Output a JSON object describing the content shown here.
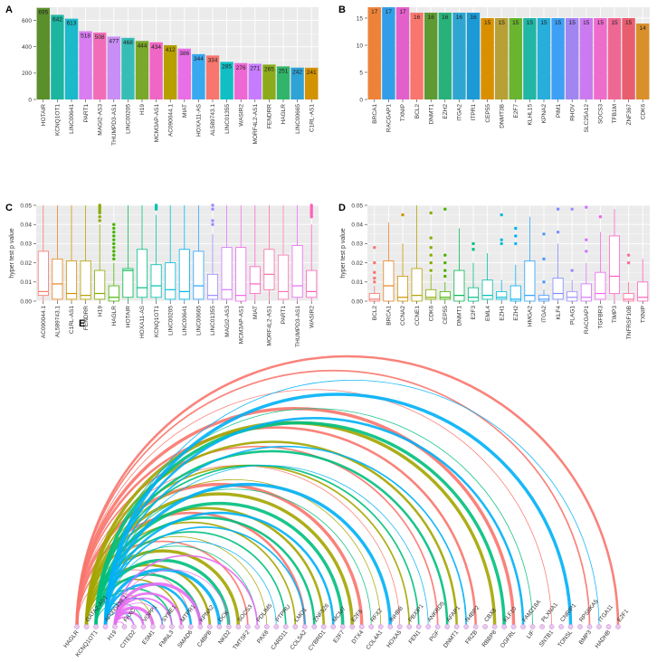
{
  "chart_data": [
    {
      "panel": "A",
      "type": "bar",
      "categories": [
        "HOTAIR",
        "KCNQ1OT1",
        "LINC00641",
        "PART1",
        "MAGI2-AS3",
        "THUMPD3-AS1",
        "LINC00205",
        "H19",
        "MCM3AP-AS1",
        "AC090044.1",
        "MIAT",
        "HOXA11-AS",
        "AL589743.1",
        "LINC01355",
        "WASIR2",
        "MORF4L2-AS1",
        "FENDRR",
        "HAGLR",
        "LINC00665",
        "C1RL-AS1"
      ],
      "values": [
        695,
        642,
        613,
        518,
        508,
        477,
        468,
        444,
        434,
        412,
        386,
        344,
        334,
        285,
        276,
        271,
        265,
        251,
        242,
        241
      ],
      "colors": [
        "#5a8f2c",
        "#1cb59f",
        "#1bb9c9",
        "#d97df2",
        "#f26db8",
        "#c98ef5",
        "#36bdb6",
        "#7aa82a",
        "#f066c4",
        "#b79f00",
        "#e86fe6",
        "#38a8f0",
        "#f8766d",
        "#0fbfc4",
        "#ee68d4",
        "#c77cff",
        "#8bab1c",
        "#31b56a",
        "#2fa2d6",
        "#d39200"
      ],
      "ylim": [
        0,
        700
      ],
      "yticks": [
        0,
        200,
        400,
        600
      ]
    },
    {
      "panel": "B",
      "type": "bar",
      "categories": [
        "BRCA1",
        "RACGAP1",
        "TXNIP",
        "BCL2",
        "DNMT1",
        "EZH2",
        "ITGA2",
        "ITPR1",
        "CEP55",
        "DNMT3B",
        "E2F7",
        "KLHL15",
        "KPNA2",
        "PIM1",
        "RHOV",
        "SLC25A12",
        "SOCS3",
        "TFB1M",
        "ZNF367",
        "CDK6"
      ],
      "values": [
        17,
        17,
        17,
        16,
        16,
        16,
        16,
        16,
        15,
        15,
        15,
        15,
        15,
        15,
        15,
        15,
        15,
        15,
        15,
        14
      ],
      "colors": [
        "#ed8338",
        "#339ee8",
        "#e35fc9",
        "#f8766d",
        "#5e9a34",
        "#28b27a",
        "#2ea6d1",
        "#1b9ad6",
        "#d89000",
        "#b7a035",
        "#6ab42f",
        "#22b6a4",
        "#27aeda",
        "#3da0f5",
        "#a186f0",
        "#cc7af0",
        "#ee6ccc",
        "#ef6893",
        "#e85e6f",
        "#d9902b"
      ],
      "ylim": [
        0,
        17
      ],
      "yticks": [
        0,
        5,
        10,
        15
      ]
    },
    {
      "panel": "C",
      "type": "box",
      "ylabel": "hyper test p value",
      "ylim": [
        0,
        0.05
      ],
      "yticks": [
        "0.00",
        "0.01",
        "0.02",
        "0.03",
        "0.04",
        "0.05"
      ],
      "categories": [
        "AC090044.1",
        "AL589743.1",
        "C1RL-AS1",
        "FENDRR",
        "H19",
        "HAGLR",
        "HOTAIR",
        "HOXA11-AS",
        "KCNQ1OT1",
        "LINC00205",
        "LINC00641",
        "LINC00665",
        "LINC01355",
        "MAGI2-AS3",
        "MCM3AP-AS1",
        "MIAT",
        "MORF4L2-AS1",
        "PART1",
        "THUMPD3-AS1",
        "WASIR2"
      ],
      "colors": [
        "#f8766d",
        "#e7851e",
        "#d09400",
        "#b2a100",
        "#89ac00",
        "#45b500",
        "#00bc51",
        "#00c087",
        "#00c0b2",
        "#00bcd6",
        "#00b3f2",
        "#29a3ff",
        "#9c8dff",
        "#d277ff",
        "#f166e8",
        "#ff61c7",
        "#ff6b9f",
        "#ff79b5",
        "#e76bf3",
        "#ff62bc"
      ],
      "boxes": [
        {
          "q1": 0.003,
          "med": 0.005,
          "q3": 0.026,
          "lo": 0.0,
          "hi": 0.05,
          "outliers": []
        },
        {
          "q1": 0.001,
          "med": 0.009,
          "q3": 0.022,
          "lo": 0.0,
          "hi": 0.05,
          "outliers": []
        },
        {
          "q1": 0.001,
          "med": 0.004,
          "q3": 0.021,
          "lo": 0.0,
          "hi": 0.05,
          "outliers": []
        },
        {
          "q1": 0.001,
          "med": 0.003,
          "q3": 0.021,
          "lo": 0.0,
          "hi": 0.05,
          "outliers": []
        },
        {
          "q1": 0.001,
          "med": 0.004,
          "q3": 0.016,
          "lo": 0.0,
          "hi": 0.04,
          "outliers": [
            0.042,
            0.044,
            0.046,
            0.047,
            0.048,
            0.049,
            0.05
          ]
        },
        {
          "q1": 0.0,
          "med": 0.002,
          "q3": 0.008,
          "lo": 0.0,
          "hi": 0.02,
          "outliers": [
            0.022,
            0.024,
            0.026,
            0.028,
            0.03,
            0.032,
            0.034,
            0.036,
            0.038,
            0.04
          ]
        },
        {
          "q1": 0.002,
          "med": 0.016,
          "q3": 0.017,
          "lo": 0.0,
          "hi": 0.05,
          "outliers": []
        },
        {
          "q1": 0.002,
          "med": 0.007,
          "q3": 0.027,
          "lo": 0.0,
          "hi": 0.05,
          "outliers": []
        },
        {
          "q1": 0.002,
          "med": 0.008,
          "q3": 0.019,
          "lo": 0.0,
          "hi": 0.045,
          "outliers": [
            0.048,
            0.049,
            0.05
          ]
        },
        {
          "q1": 0.001,
          "med": 0.006,
          "q3": 0.02,
          "lo": 0.0,
          "hi": 0.05,
          "outliers": []
        },
        {
          "q1": 0.001,
          "med": 0.005,
          "q3": 0.027,
          "lo": 0.0,
          "hi": 0.05,
          "outliers": []
        },
        {
          "q1": 0.001,
          "med": 0.008,
          "q3": 0.026,
          "lo": 0.0,
          "hi": 0.05,
          "outliers": []
        },
        {
          "q1": 0.001,
          "med": 0.003,
          "q3": 0.014,
          "lo": 0.0,
          "hi": 0.035,
          "outliers": [
            0.04,
            0.042,
            0.048,
            0.05
          ]
        },
        {
          "q1": 0.001,
          "med": 0.006,
          "q3": 0.028,
          "lo": 0.0,
          "hi": 0.05,
          "outliers": []
        },
        {
          "q1": 0.0,
          "med": 0.003,
          "q3": 0.028,
          "lo": 0.0,
          "hi": 0.05,
          "outliers": []
        },
        {
          "q1": 0.004,
          "med": 0.009,
          "q3": 0.018,
          "lo": 0.0,
          "hi": 0.05,
          "outliers": []
        },
        {
          "q1": 0.006,
          "med": 0.014,
          "q3": 0.027,
          "lo": 0.0,
          "hi": 0.05,
          "outliers": []
        },
        {
          "q1": 0.001,
          "med": 0.005,
          "q3": 0.024,
          "lo": 0.0,
          "hi": 0.05,
          "outliers": []
        },
        {
          "q1": 0.002,
          "med": 0.008,
          "q3": 0.029,
          "lo": 0.0,
          "hi": 0.05,
          "outliers": []
        },
        {
          "q1": 0.002,
          "med": 0.005,
          "q3": 0.016,
          "lo": 0.0,
          "hi": 0.04,
          "outliers": [
            0.044,
            0.045,
            0.046,
            0.047,
            0.048,
            0.049,
            0.05
          ]
        }
      ]
    },
    {
      "panel": "D",
      "type": "box",
      "ylabel": "hyper test p value",
      "ylim": [
        0,
        0.05
      ],
      "yticks": [
        "0.00",
        "0.01",
        "0.02",
        "0.03",
        "0.04",
        "0.05"
      ],
      "categories": [
        "BCL2",
        "BRCA1",
        "CCNA2",
        "CCNE1",
        "CDK6",
        "CEP55",
        "DNMT1",
        "E2F3",
        "EML4",
        "EZH1",
        "EZH2",
        "HMGA2",
        "ITGA2",
        "KLF4",
        "PLAG1",
        "RACGAP1",
        "TGFBR3",
        "TIMP3",
        "TNFRSF10B",
        "TXNIP"
      ],
      "colors": [
        "#f8766d",
        "#e7851e",
        "#d09400",
        "#b2a100",
        "#89ac00",
        "#45b500",
        "#00bc51",
        "#00c087",
        "#00c0b2",
        "#00bcd6",
        "#00b3f2",
        "#29a3ff",
        "#4c9cff",
        "#7e8cff",
        "#9c8dff",
        "#d277ff",
        "#f166e8",
        "#ff61c7",
        "#ff6b9f",
        "#ff62bc"
      ],
      "boxes": [
        {
          "q1": 0.0,
          "med": 0.001,
          "q3": 0.004,
          "lo": 0.0,
          "hi": 0.008,
          "outliers": [
            0.01,
            0.012,
            0.015,
            0.02,
            0.028
          ]
        },
        {
          "q1": 0.0,
          "med": 0.008,
          "q3": 0.021,
          "lo": 0.0,
          "hi": 0.041,
          "outliers": []
        },
        {
          "q1": 0.0,
          "med": 0.002,
          "q3": 0.013,
          "lo": 0.0,
          "hi": 0.03,
          "outliers": [
            0.045
          ]
        },
        {
          "q1": 0.0,
          "med": 0.003,
          "q3": 0.017,
          "lo": 0.0,
          "hi": 0.05,
          "outliers": []
        },
        {
          "q1": 0.001,
          "med": 0.002,
          "q3": 0.006,
          "lo": 0.0,
          "hi": 0.014,
          "outliers": [
            0.016,
            0.02,
            0.024,
            0.028,
            0.033,
            0.046
          ]
        },
        {
          "q1": 0.001,
          "med": 0.002,
          "q3": 0.005,
          "lo": 0.0,
          "hi": 0.01,
          "outliers": [
            0.013,
            0.016,
            0.02,
            0.024,
            0.048
          ]
        },
        {
          "q1": 0.0,
          "med": 0.003,
          "q3": 0.016,
          "lo": 0.0,
          "hi": 0.038,
          "outliers": []
        },
        {
          "q1": 0.0,
          "med": 0.002,
          "q3": 0.007,
          "lo": 0.0,
          "hi": 0.02,
          "outliers": [
            0.027,
            0.03
          ]
        },
        {
          "q1": 0.001,
          "med": 0.003,
          "q3": 0.011,
          "lo": 0.0,
          "hi": 0.025,
          "outliers": []
        },
        {
          "q1": 0.001,
          "med": 0.002,
          "q3": 0.005,
          "lo": 0.0,
          "hi": 0.011,
          "outliers": [
            0.03,
            0.032,
            0.045
          ]
        },
        {
          "q1": 0.0,
          "med": 0.001,
          "q3": 0.008,
          "lo": 0.0,
          "hi": 0.019,
          "outliers": [
            0.03,
            0.034,
            0.038
          ]
        },
        {
          "q1": 0.0,
          "med": 0.003,
          "q3": 0.021,
          "lo": 0.0,
          "hi": 0.044,
          "outliers": []
        },
        {
          "q1": 0.0,
          "med": 0.001,
          "q3": 0.003,
          "lo": 0.0,
          "hi": 0.006,
          "outliers": [
            0.01,
            0.022,
            0.035
          ]
        },
        {
          "q1": 0.001,
          "med": 0.004,
          "q3": 0.012,
          "lo": 0.0,
          "hi": 0.03,
          "outliers": [
            0.036,
            0.048
          ]
        },
        {
          "q1": 0.0,
          "med": 0.002,
          "q3": 0.005,
          "lo": 0.0,
          "hi": 0.011,
          "outliers": [
            0.016,
            0.048
          ]
        },
        {
          "q1": 0.0,
          "med": 0.002,
          "q3": 0.009,
          "lo": 0.0,
          "hi": 0.02,
          "outliers": [
            0.026,
            0.032,
            0.049
          ]
        },
        {
          "q1": 0.001,
          "med": 0.004,
          "q3": 0.015,
          "lo": 0.0,
          "hi": 0.036,
          "outliers": [
            0.044
          ]
        },
        {
          "q1": 0.004,
          "med": 0.013,
          "q3": 0.034,
          "lo": 0.0,
          "hi": 0.048,
          "outliers": []
        },
        {
          "q1": 0.0,
          "med": 0.001,
          "q3": 0.004,
          "lo": 0.0,
          "hi": 0.01,
          "outliers": [
            0.02,
            0.024
          ]
        },
        {
          "q1": 0.0,
          "med": 0.002,
          "q3": 0.01,
          "lo": 0.0,
          "hi": 0.022,
          "outliers": []
        }
      ]
    },
    {
      "panel": "E",
      "type": "arc-network",
      "nodes": [
        "HAGLR",
        "GATA2-AS1",
        "KCNQ1OT1",
        "AP000439.1",
        "H19",
        "FAXC",
        "CITED2",
        "VOPP1",
        "ESM1",
        "SYNE1",
        "FMNL3",
        "MTPR1",
        "SMAD6",
        "KPNA2",
        "C4BPB",
        "DCK",
        "NKD2",
        "SOCS3",
        "TMTSF2",
        "PDLIM5",
        "PAX8",
        "PTPRU",
        "CARD11",
        "LMO1",
        "COL5A2",
        "ZNF526",
        "CYBRD1",
        "MCM7",
        "E2F7",
        "E2F5",
        "DTX4",
        "RFX2",
        "COL4A1",
        "INHBB",
        "HOXA5",
        "PBXIP1",
        "FEN1",
        "ANKRD5",
        "PGF",
        "AFAP1",
        "DNMT1",
        "N4BP2",
        "FRZB",
        "CBX8",
        "RBBP8",
        "KLF10",
        "OGFRL",
        "FAM218A",
        "LIF",
        "PLXNA1",
        "SNTB1",
        "CNRIP1",
        "TONSL",
        "RPS6KA5",
        "BMP3",
        "ITGA11",
        "HADHB",
        "E2F1"
      ],
      "sources": [
        {
          "node": "HAGLR",
          "color": "#f8766d",
          "targets": [
            12,
            18,
            24,
            30,
            34,
            38,
            42,
            46,
            50,
            54,
            57
          ]
        },
        {
          "node": "GATA2-AS1",
          "color": "#a3a500",
          "targets": [
            8,
            11,
            14,
            17,
            20,
            23,
            26,
            29,
            32,
            35,
            40,
            44
          ]
        },
        {
          "node": "KCNQ1OT1",
          "color": "#00bf7d",
          "targets": [
            7,
            10,
            13,
            16,
            19,
            22,
            25,
            28,
            31,
            36,
            39,
            45,
            48
          ]
        },
        {
          "node": "AP000439.1",
          "color": "#00b0f6",
          "targets": [
            6,
            9,
            12,
            15,
            21,
            24,
            27,
            33,
            37,
            41,
            47,
            52,
            55
          ]
        },
        {
          "node": "H19",
          "color": "#e76bf3",
          "targets": [
            5,
            6,
            7,
            8,
            9,
            10,
            11,
            13,
            16,
            19
          ]
        }
      ]
    }
  ]
}
